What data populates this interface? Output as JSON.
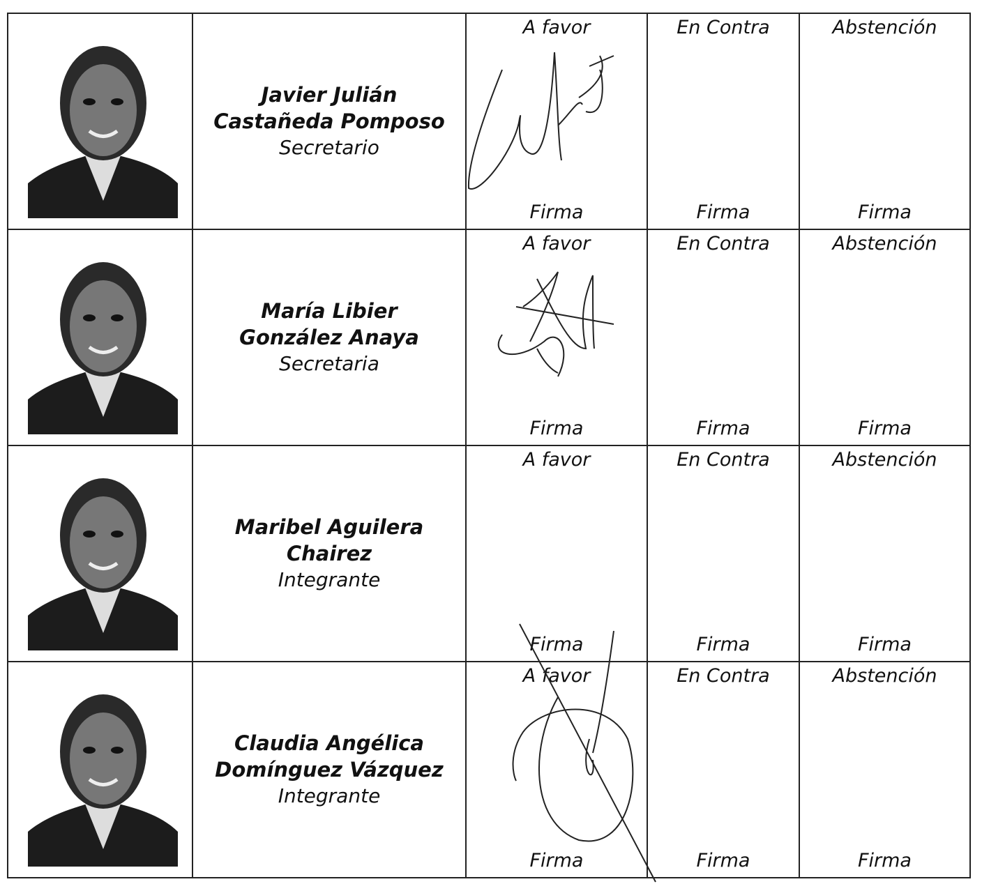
{
  "rows": [
    {
      "name": [
        "Javier Julián",
        "Castañeda Pomposo"
      ],
      "role": "Secretario",
      "votes": [
        {
          "label": "A favor",
          "sign": "Firma"
        },
        {
          "label": "En Contra",
          "sign": "Firma"
        },
        {
          "label": "Abstención",
          "sign": "Firma"
        }
      ]
    },
    {
      "name": [
        "María Libier",
        "González Anaya"
      ],
      "role": "Secretaria",
      "votes": [
        {
          "label": "A favor",
          "sign": "Firma"
        },
        {
          "label": "En Contra",
          "sign": "Firma"
        },
        {
          "label": "Abstención",
          "sign": "Firma"
        }
      ]
    },
    {
      "name": [
        "Maribel Aguilera",
        "Chairez"
      ],
      "role": "Integrante",
      "votes": [
        {
          "label": "A favor",
          "sign": "Firma"
        },
        {
          "label": "En Contra",
          "sign": "Firma"
        },
        {
          "label": "Abstención",
          "sign": "Firma"
        }
      ]
    },
    {
      "name": [
        "Claudia Angélica",
        "Domínguez Vázquez"
      ],
      "role": "Integrante",
      "votes": [
        {
          "label": "A favor",
          "sign": "Firma"
        },
        {
          "label": "En Contra",
          "sign": "Firma"
        },
        {
          "label": "Abstención",
          "sign": "Firma"
        }
      ]
    }
  ]
}
